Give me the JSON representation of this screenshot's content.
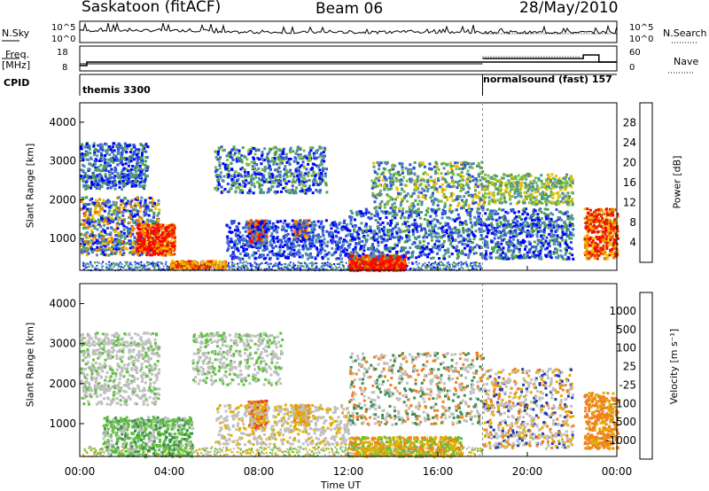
{
  "header": {
    "station": "Saskatoon (fitACF)",
    "beam": "Beam 06",
    "date": "28/May/2010"
  },
  "left_labels": {
    "nsky": "N.Sky",
    "freq": "Freq.",
    "freq_unit": "[MHz]",
    "cpid": "CPID"
  },
  "right_labels": {
    "nsearch": "N.Search",
    "nave": "Nave"
  },
  "top_axes": {
    "nsky_ticks": [
      "10^5",
      "10^0"
    ],
    "nsearch_ticks": [
      "10^5",
      "10^0"
    ],
    "freq_ticks": [
      "18",
      "8"
    ],
    "nave_ticks": [
      "60",
      "0"
    ]
  },
  "cpid_segments": [
    {
      "label": "themis 3300",
      "start_hour": 0,
      "end_hour": 18
    },
    {
      "label": "normalsound (fast) 157",
      "start_hour": 18,
      "end_hour": 24
    }
  ],
  "chart_data": [
    {
      "type": "heatmap",
      "name": "power",
      "ylabel": "Slant Range [km]",
      "xlabel": "",
      "xlim": [
        0,
        24
      ],
      "ylim": [
        180,
        4500
      ],
      "y_ticks": [
        "1000",
        "2000",
        "3000",
        "4000"
      ],
      "colorbar_label": "Power [dB]",
      "colorbar_ticks": [
        "4",
        "8",
        "12",
        "16",
        "20",
        "24",
        "28"
      ],
      "colors": [
        "#0000ff",
        "#2f4fe0",
        "#4f8fb0",
        "#50a050",
        "#7fc040",
        "#f0c000",
        "#f08000",
        "#e02000",
        "#ff0000"
      ]
    },
    {
      "type": "heatmap",
      "name": "velocity",
      "ylabel": "Slant Range [km]",
      "xlabel": "Time UT",
      "xlim": [
        0,
        24
      ],
      "ylim": [
        180,
        4500
      ],
      "x_ticks": [
        "00:00",
        "04:00",
        "08:00",
        "12:00",
        "16:00",
        "20:00",
        "00:00"
      ],
      "y_ticks": [
        "1000",
        "2000",
        "3000",
        "4000"
      ],
      "colorbar_label": "Velocity [m s⁻¹]",
      "colorbar_ticks": [
        "1000",
        "500",
        "100",
        "25",
        "-25",
        "-100",
        "-500",
        "-1000"
      ],
      "colors": [
        "#1e3fb0",
        "#4a7fb0",
        "#3a8f50",
        "#60c040",
        "#c0c0c0",
        "#e0b000",
        "#f08020",
        "#e04020",
        "#ff0000"
      ]
    }
  ]
}
